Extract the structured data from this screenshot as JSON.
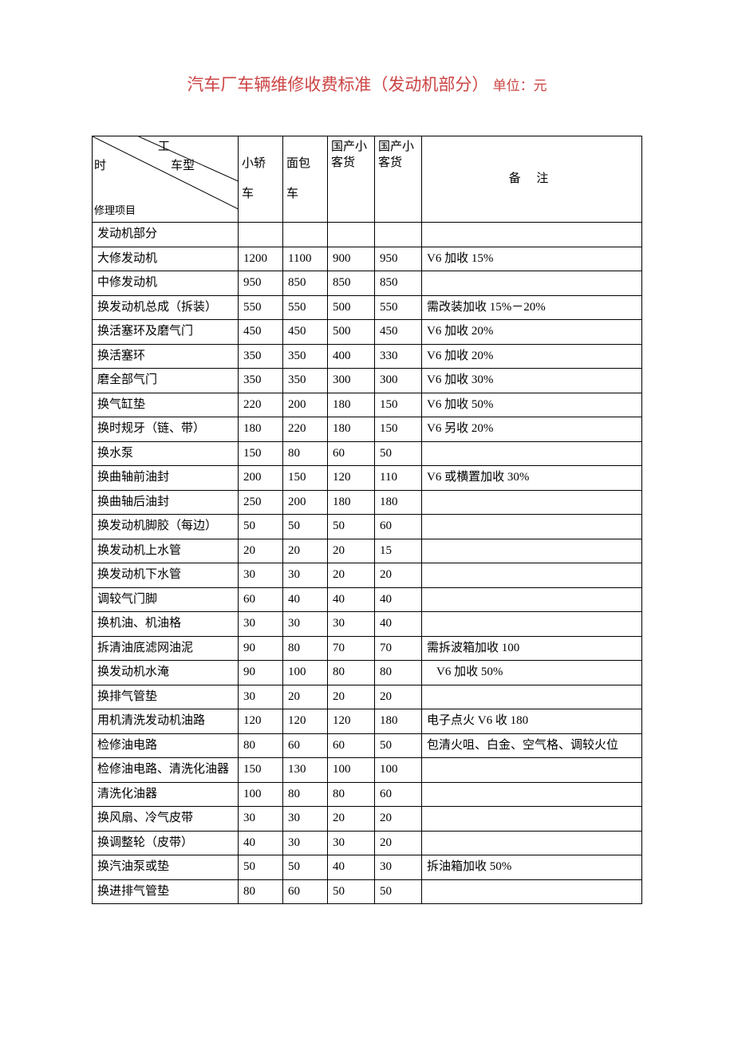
{
  "title": {
    "main": "汽车厂车辆维修收费标准（发动机部分）",
    "sub": "单位：元"
  },
  "header": {
    "diag_labels": {
      "gong": "工",
      "shi": "时",
      "chexing": "车型",
      "xiuli": "修理项目"
    },
    "col2_line1": "小轿",
    "col2_line2": "车",
    "col3_line1": "面包",
    "col3_line2": "车",
    "col4": "国产小客货",
    "col5": "国产小客货",
    "col6": "备 注"
  },
  "section": "发动机部分",
  "rows": [
    {
      "name": "大修发动机",
      "c2": "1200",
      "c3": "1100",
      "c4": "900",
      "c5": "950",
      "remark": "V6 加收 15%"
    },
    {
      "name": "中修发动机",
      "c2": "950",
      "c3": "850",
      "c4": "850",
      "c5": "850",
      "remark": ""
    },
    {
      "name": "换发动机总成（拆装）",
      "c2": "550",
      "c3": "550",
      "c4": "500",
      "c5": "550",
      "remark": "需改装加收 15%－20%"
    },
    {
      "name": "换活塞环及磨气门",
      "c2": "450",
      "c3": "450",
      "c4": "500",
      "c5": "450",
      "remark": "V6 加收 20%"
    },
    {
      "name": "换活塞环",
      "c2": "350",
      "c3": "350",
      "c4": "400",
      "c5": "330",
      "remark": "V6 加收 20%"
    },
    {
      "name": "磨全部气门",
      "c2": "350",
      "c3": "350",
      "c4": "300",
      "c5": "300",
      "remark": "V6 加收 30%"
    },
    {
      "name": "换气缸垫",
      "c2": "220",
      "c3": "200",
      "c4": "180",
      "c5": "150",
      "remark": "V6 加收 50%"
    },
    {
      "name": "换时规牙（链、带）",
      "c2": "180",
      "c3": "220",
      "c4": "180",
      "c5": "150",
      "remark": "V6 另收 20%"
    },
    {
      "name": "换水泵",
      "c2": "150",
      "c3": "80",
      "c4": "60",
      "c5": "50",
      "remark": ""
    },
    {
      "name": "换曲轴前油封",
      "c2": "200",
      "c3": "150",
      "c4": "120",
      "c5": "110",
      "remark": "V6 或横置加收 30%"
    },
    {
      "name": "换曲轴后油封",
      "c2": "250",
      "c3": "200",
      "c4": "180",
      "c5": "180",
      "remark": ""
    },
    {
      "name": "换发动机脚胶（每边）",
      "c2": "50",
      "c3": "50",
      "c4": "50",
      "c5": "60",
      "remark": ""
    },
    {
      "name": "换发动机上水管",
      "c2": "20",
      "c3": "20",
      "c4": "20",
      "c5": "15",
      "remark": ""
    },
    {
      "name": "换发动机下水管",
      "c2": "30",
      "c3": "30",
      "c4": "20",
      "c5": "20",
      "remark": ""
    },
    {
      "name": "调较气门脚",
      "c2": "60",
      "c3": "40",
      "c4": "40",
      "c5": "40",
      "remark": ""
    },
    {
      "name": "换机油、机油格",
      "c2": "30",
      "c3": "30",
      "c4": "30",
      "c5": "40",
      "remark": ""
    },
    {
      "name": "拆清油底滤网油泥",
      "c2": "90",
      "c3": "80",
      "c4": "70",
      "c5": "70",
      "remark": "需拆波箱加收 100"
    },
    {
      "name": "换发动机水淹",
      "c2": "90",
      "c3": "100",
      "c4": "80",
      "c5": "80",
      "remark": "V6 加收 50%",
      "indent": true
    },
    {
      "name": "换排气管垫",
      "c2": "30",
      "c3": "20",
      "c4": "20",
      "c5": "20",
      "remark": ""
    },
    {
      "name": "用机清洗发动机油路",
      "c2": "120",
      "c3": "120",
      "c4": "120",
      "c5": "180",
      "remark": "电子点火 V6 收 180"
    },
    {
      "name": "检修油电路",
      "c2": "80",
      "c3": "60",
      "c4": "60",
      "c5": "50",
      "remark": "包清火咀、白金、空气格、调较火位"
    },
    {
      "name": "检修油电路、清洗化油器",
      "c2": "150",
      "c3": "130",
      "c4": "100",
      "c5": "100",
      "remark": ""
    },
    {
      "name": "清洗化油器",
      "c2": "100",
      "c3": "80",
      "c4": "80",
      "c5": "60",
      "remark": ""
    },
    {
      "name": "换风扇、冷气皮带",
      "c2": "30",
      "c3": "30",
      "c4": "20",
      "c5": "20",
      "remark": ""
    },
    {
      "name": "换调整轮（皮带）",
      "c2": "40",
      "c3": "30",
      "c4": "30",
      "c5": "20",
      "remark": ""
    },
    {
      "name": "换汽油泵或垫",
      "c2": "50",
      "c3": "50",
      "c4": "40",
      "c5": "30",
      "remark": "拆油箱加收 50%"
    },
    {
      "name": "换进排气管垫",
      "c2": "80",
      "c3": "60",
      "c4": "50",
      "c5": "50",
      "remark": ""
    }
  ]
}
